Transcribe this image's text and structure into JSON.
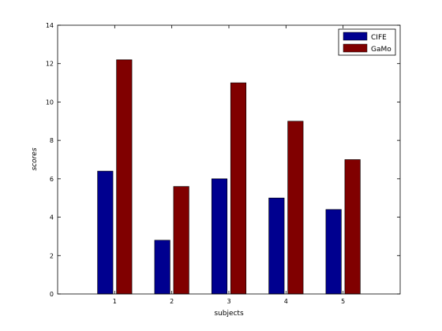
{
  "chart_data": {
    "type": "bar",
    "categories": [
      "1",
      "2",
      "3",
      "4",
      "5"
    ],
    "series": [
      {
        "name": "CIFE",
        "values": [
          6.4,
          2.8,
          6.0,
          5.0,
          4.4
        ],
        "color": "#00008f"
      },
      {
        "name": "GaMo",
        "values": [
          12.2,
          5.6,
          11.0,
          9.0,
          7.0
        ],
        "color": "#800000"
      }
    ],
    "xlabel": "subjects",
    "ylabel": "scores",
    "ylim": [
      0,
      14
    ],
    "yticks": [
      "0",
      "2",
      "4",
      "6",
      "8",
      "10",
      "12",
      "14"
    ],
    "grid": false,
    "legend_position": "top-right"
  }
}
